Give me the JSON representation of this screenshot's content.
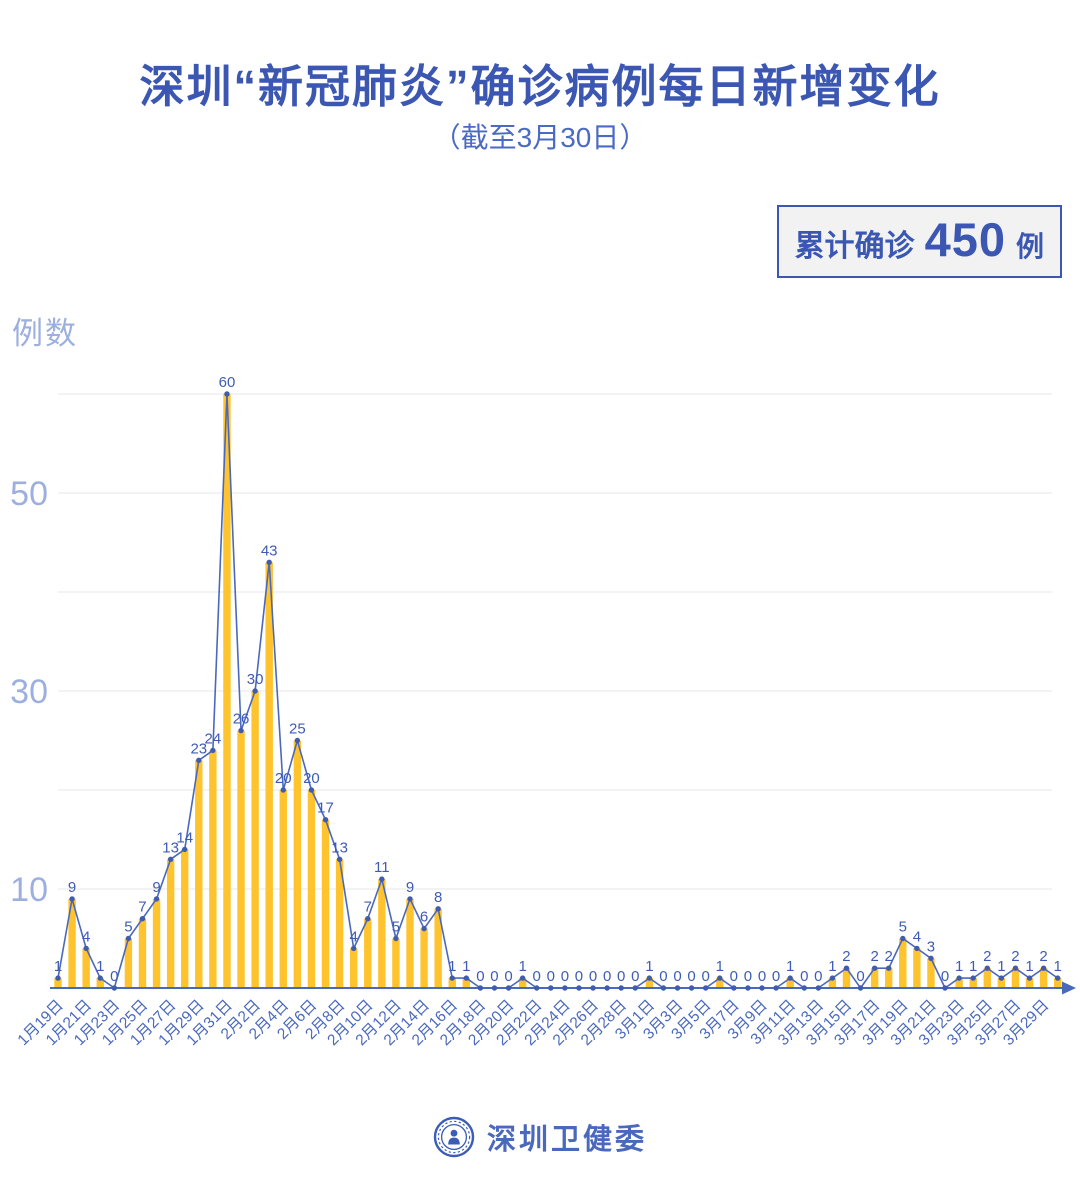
{
  "header": {
    "title": "深圳“新冠肺炎”确诊病例每日新增变化",
    "subtitle": "（截至3月30日）"
  },
  "badge": {
    "prefix": "累计确诊",
    "count": "450",
    "suffix": "例"
  },
  "chart_data": {
    "type": "bar",
    "overlay": "line",
    "title": "深圳“新冠肺炎”确诊病例每日新增变化",
    "subtitle": "截至3月30日",
    "ylabel": "例数",
    "xlabel": "",
    "ylim": [
      0,
      60
    ],
    "grid": true,
    "gridlines": [
      10,
      20,
      30,
      40,
      50,
      60
    ],
    "ytick_labels": [
      10,
      30,
      50
    ],
    "x_label_every": 2,
    "total_label": "累计确诊450例",
    "x": [
      "1月19日",
      "1月20日",
      "1月21日",
      "1月22日",
      "1月23日",
      "1月24日",
      "1月25日",
      "1月26日",
      "1月27日",
      "1月28日",
      "1月29日",
      "1月30日",
      "1月31日",
      "2月1日",
      "2月2日",
      "2月3日",
      "2月4日",
      "2月5日",
      "2月6日",
      "2月7日",
      "2月8日",
      "2月9日",
      "2月10日",
      "2月11日",
      "2月12日",
      "2月13日",
      "2月14日",
      "2月15日",
      "2月16日",
      "2月17日",
      "2月18日",
      "2月19日",
      "2月20日",
      "2月21日",
      "2月22日",
      "2月23日",
      "2月24日",
      "2月25日",
      "2月26日",
      "2月27日",
      "2月28日",
      "2月29日",
      "3月1日",
      "3月2日",
      "3月3日",
      "3月4日",
      "3月5日",
      "3月6日",
      "3月7日",
      "3月8日",
      "3月9日",
      "3月10日",
      "3月11日",
      "3月12日",
      "3月13日",
      "3月14日",
      "3月15日",
      "3月16日",
      "3月17日",
      "3月18日",
      "3月19日",
      "3月20日",
      "3月21日",
      "3月22日",
      "3月23日",
      "3月24日",
      "3月25日",
      "3月26日",
      "3月27日",
      "3月28日",
      "3月29日",
      "3月30日"
    ],
    "values": [
      1,
      9,
      4,
      1,
      0,
      5,
      7,
      9,
      13,
      14,
      23,
      24,
      60,
      26,
      30,
      43,
      20,
      25,
      20,
      17,
      13,
      4,
      7,
      11,
      5,
      9,
      6,
      8,
      1,
      1,
      0,
      0,
      0,
      1,
      0,
      0,
      0,
      0,
      0,
      0,
      0,
      0,
      1,
      0,
      0,
      0,
      0,
      1,
      0,
      0,
      0,
      0,
      1,
      0,
      0,
      1,
      2,
      0,
      2,
      2,
      5,
      4,
      3,
      0,
      1,
      1,
      2,
      1,
      2,
      1,
      2,
      1
    ]
  },
  "footer": {
    "brand": "深圳卫健委"
  },
  "colors": {
    "title_blue": "#3b57b2",
    "axis_blue": "#4a69bd",
    "bar_yellow": "#ffc32e",
    "dot_blue": "#3f5cae",
    "label_blue": "#3f5cb5",
    "ytick_blue": "#9dafdf",
    "grid_gray": "#ececec",
    "badge_bg": "#f2f2f2"
  }
}
